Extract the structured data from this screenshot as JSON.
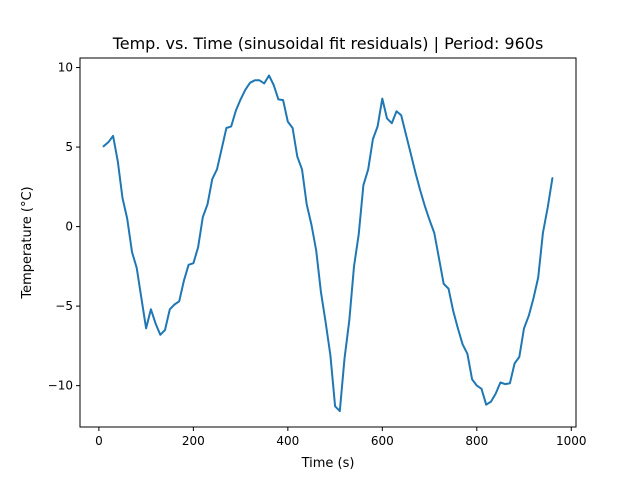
{
  "chart_data": {
    "type": "line",
    "title": "Temp. vs. Time (sinusoidal fit residuals) | Period: 960s",
    "xlabel": "Time (s)",
    "ylabel": "Temperature (°C)",
    "xlim": [
      -40,
      1010
    ],
    "ylim": [
      -12.6,
      10.6
    ],
    "xticks": [
      0,
      200,
      400,
      600,
      800,
      1000
    ],
    "xtick_labels": [
      "0",
      "200",
      "400",
      "600",
      "800",
      "1000"
    ],
    "yticks": [
      -10,
      -5,
      0,
      5,
      10
    ],
    "ytick_labels": [
      "−10",
      "−5",
      "0",
      "5",
      "10"
    ],
    "grid": false,
    "series_color": "#1f77b4",
    "series": [
      {
        "x": [
          10,
          20,
          30,
          40,
          50,
          60,
          70,
          80,
          90,
          100,
          110,
          120,
          130,
          140,
          150,
          160,
          170,
          180,
          190,
          200,
          210,
          220,
          230,
          240,
          250,
          260,
          270,
          280,
          290,
          300,
          310,
          320,
          330,
          340,
          350,
          360,
          370,
          380,
          390,
          400,
          410,
          420,
          430,
          440,
          450,
          460,
          470,
          480,
          490,
          500,
          510,
          520,
          530,
          540,
          550,
          560,
          570,
          580,
          590,
          600,
          610,
          620,
          630,
          640,
          650,
          660,
          670,
          680,
          690,
          700,
          710,
          720,
          730,
          740,
          750,
          760,
          770,
          780,
          790,
          800,
          810,
          820,
          830,
          840,
          850,
          860,
          870,
          880,
          890,
          900,
          910,
          920,
          930,
          940,
          950,
          960
        ],
        "values": [
          5.05,
          5.3,
          5.7,
          4.1,
          1.8,
          0.5,
          -1.6,
          -2.6,
          -4.5,
          -6.4,
          -5.2,
          -6.1,
          -6.8,
          -6.5,
          -5.2,
          -4.9,
          -4.7,
          -3.4,
          -2.4,
          -2.3,
          -1.3,
          0.6,
          1.4,
          3.0,
          3.6,
          4.9,
          6.2,
          6.3,
          7.3,
          8.0,
          8.6,
          9.05,
          9.2,
          9.2,
          9.0,
          9.5,
          8.9,
          8.0,
          7.95,
          6.6,
          6.2,
          4.4,
          3.6,
          1.4,
          0.1,
          -1.5,
          -4.1,
          -6.0,
          -8.1,
          -11.3,
          -11.6,
          -8.3,
          -5.9,
          -2.5,
          -0.5,
          2.6,
          3.6,
          5.5,
          6.3,
          8.05,
          6.8,
          6.5,
          7.25,
          7.0,
          5.8,
          4.6,
          3.4,
          2.3,
          1.3,
          0.4,
          -0.4,
          -2.0,
          -3.6,
          -3.9,
          -5.3,
          -6.4,
          -7.4,
          -8.0,
          -9.6,
          -10.0,
          -10.2,
          -11.2,
          -11.0,
          -10.5,
          -9.8,
          -9.9,
          -9.85,
          -8.6,
          -8.2,
          -6.4,
          -5.6,
          -4.5,
          -3.2,
          -0.4,
          1.2,
          3.05
        ]
      }
    ]
  }
}
